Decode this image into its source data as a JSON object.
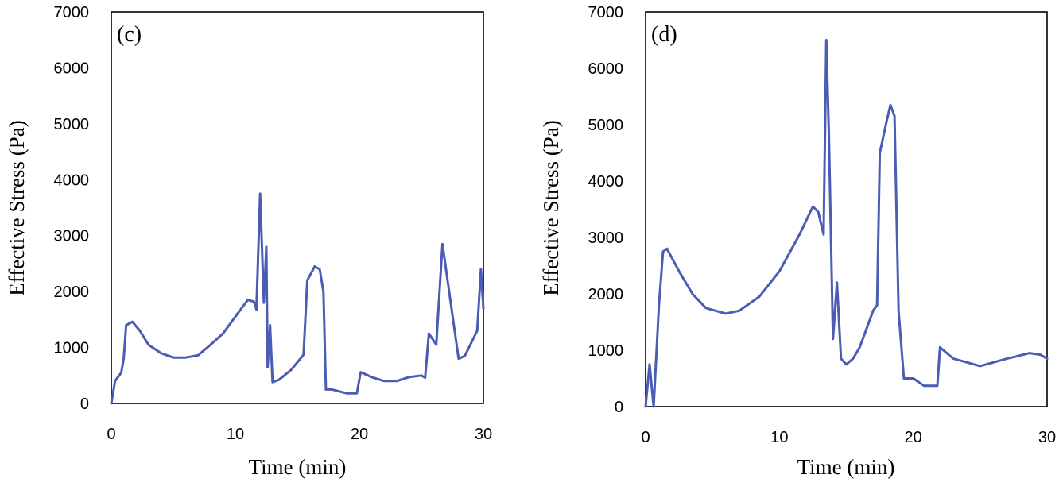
{
  "chart_data": [
    {
      "type": "line",
      "panel_label": "(c)",
      "xlabel": "Time (min)",
      "ylabel": "Effective Stress (Pa)",
      "xlim": [
        0,
        30
      ],
      "ylim": [
        0,
        7000
      ],
      "xticks": [
        "0",
        "10",
        "20",
        "30"
      ],
      "yticks": [
        "0",
        "1000",
        "2000",
        "3000",
        "4000",
        "5000",
        "6000",
        "7000"
      ],
      "series": [
        {
          "name": "Effective Stress",
          "color": "#4a5cb4",
          "x": [
            0,
            0.3,
            0.8,
            1.0,
            1.2,
            1.7,
            2.3,
            3.0,
            4.0,
            5.0,
            6.0,
            7.0,
            8.0,
            9.0,
            10.0,
            11.0,
            11.5,
            11.7,
            12.0,
            12.3,
            12.5,
            12.6,
            12.8,
            13.0,
            13.5,
            14.5,
            15.5,
            15.8,
            16.4,
            16.8,
            17.1,
            17.3,
            17.8,
            19.0,
            19.8,
            20.1,
            21.0,
            22.0,
            23.0,
            24.0,
            25.0,
            25.3,
            25.6,
            26.2,
            26.7,
            28.0,
            28.5,
            29.5,
            29.8,
            30.0
          ],
          "values": [
            0,
            400,
            550,
            800,
            1400,
            1460,
            1300,
            1050,
            900,
            820,
            820,
            860,
            1050,
            1250,
            1550,
            1850,
            1820,
            1680,
            3750,
            1800,
            2800,
            650,
            1400,
            380,
            420,
            600,
            870,
            2200,
            2450,
            2400,
            2000,
            250,
            250,
            180,
            180,
            560,
            470,
            400,
            400,
            470,
            500,
            460,
            1250,
            1050,
            2850,
            800,
            850,
            1300,
            2400,
            1700
          ]
        }
      ]
    },
    {
      "type": "line",
      "panel_label": "(d)",
      "xlabel": "Time (min)",
      "ylabel": "Effective Stress (Pa)",
      "xlim": [
        0,
        30
      ],
      "ylim": [
        0,
        7000
      ],
      "xticks": [
        "0",
        "10",
        "20",
        "30"
      ],
      "yticks": [
        "0",
        "1000",
        "2000",
        "3000",
        "4000",
        "5000",
        "6000",
        "7000"
      ],
      "series": [
        {
          "name": "Effective Stress",
          "color": "#4a5cb4",
          "x": [
            0,
            0.3,
            0.6,
            1.0,
            1.3,
            1.6,
            2.5,
            3.5,
            4.5,
            6.0,
            7.0,
            8.5,
            10.0,
            11.5,
            12.5,
            12.9,
            13.3,
            13.5,
            13.7,
            14.0,
            14.3,
            14.6,
            15.0,
            15.5,
            16.0,
            17.0,
            17.3,
            17.5,
            18.0,
            18.3,
            18.6,
            18.9,
            19.3,
            20.0,
            20.8,
            21.8,
            22.0,
            23.0,
            25.0,
            27.0,
            28.7,
            29.5,
            30.0
          ],
          "values": [
            0,
            750,
            0,
            1800,
            2750,
            2800,
            2400,
            2000,
            1750,
            1650,
            1700,
            1950,
            2400,
            3050,
            3550,
            3450,
            3050,
            6500,
            4800,
            1200,
            2200,
            850,
            750,
            850,
            1050,
            1700,
            1800,
            4500,
            5050,
            5350,
            5150,
            1700,
            500,
            500,
            370,
            370,
            1050,
            850,
            720,
            850,
            950,
            920,
            850
          ]
        }
      ]
    }
  ]
}
